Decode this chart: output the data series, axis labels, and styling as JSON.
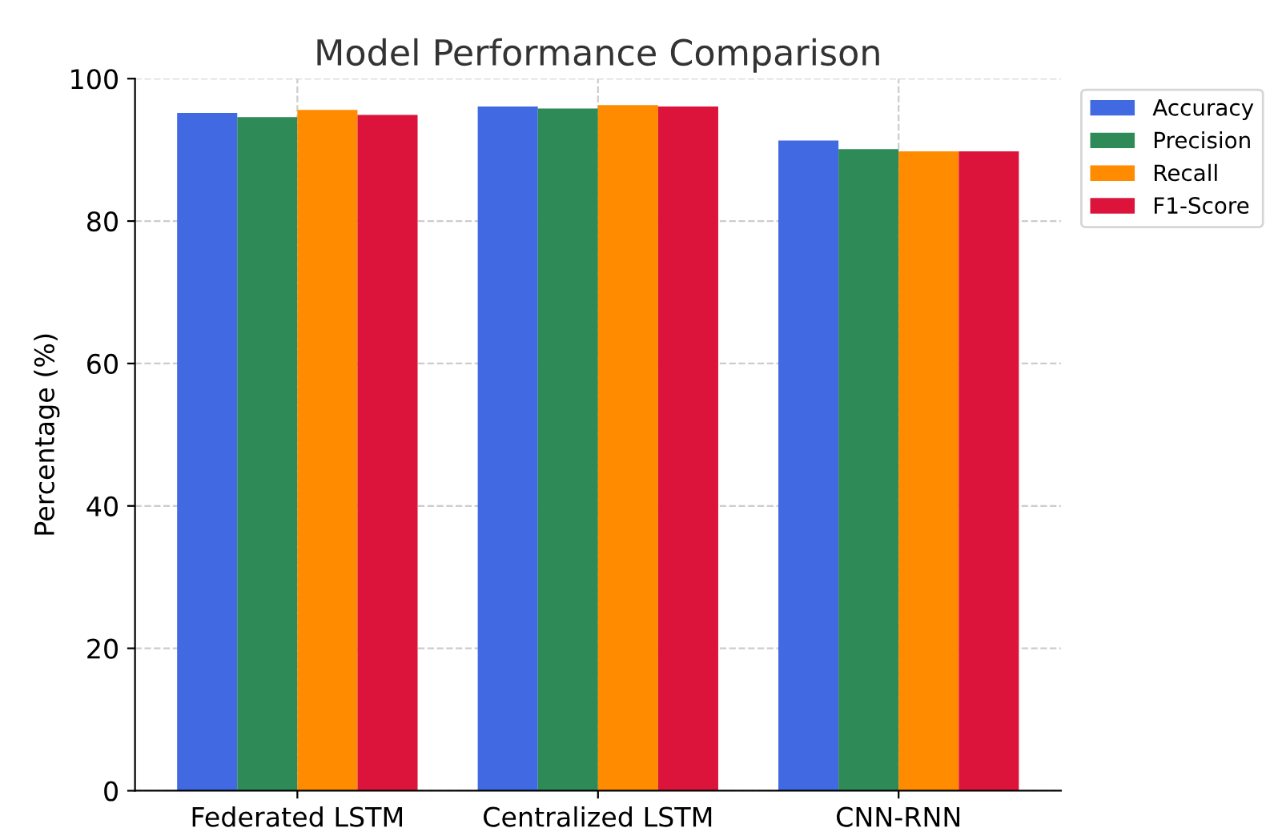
{
  "chart_data": {
    "type": "bar",
    "title": "Model Performance Comparison",
    "ylabel": "Percentage (%)",
    "categories": [
      "Federated LSTM",
      "Centralized LSTM",
      "CNN-RNN"
    ],
    "series": [
      {
        "name": "Accuracy",
        "color": "#4169e1",
        "values": [
          95.2,
          96.1,
          91.3
        ]
      },
      {
        "name": "Precision",
        "color": "#2e8b57",
        "values": [
          94.6,
          95.8,
          90.1
        ]
      },
      {
        "name": "Recall",
        "color": "#ff8c00",
        "values": [
          95.6,
          96.3,
          89.8
        ]
      },
      {
        "name": "F1-Score",
        "color": "#dc143c",
        "values": [
          94.9,
          96.1,
          89.8
        ]
      }
    ],
    "ylim": [
      0,
      100
    ],
    "yticks": [
      0,
      20,
      40,
      60,
      80,
      100
    ],
    "grid": true,
    "legend": "top right"
  }
}
